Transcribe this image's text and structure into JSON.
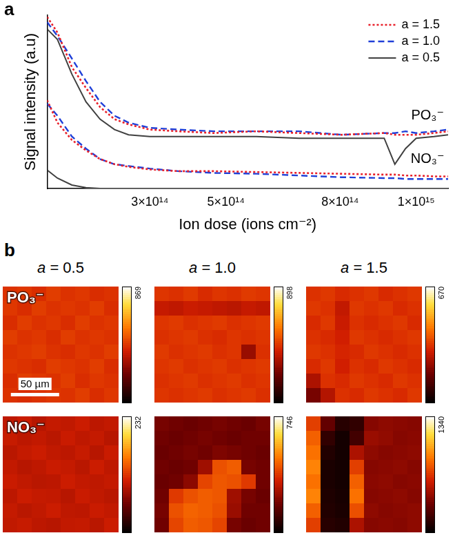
{
  "chart_data": [
    {
      "type": "line",
      "panel": "a",
      "x_label": "Ion dose (ions cm⁻²)",
      "y_label": "Signal intensity (a.u)",
      "x": [
        30000000000000.0,
        57000000000000.0,
        95000000000000.0,
        132000000000000.0,
        169000000000000.0,
        207000000000000.0,
        244000000000000.0,
        300000000000000.0,
        375000000000000.0,
        468000000000000.0,
        580000000000000.0,
        692000000000000.0,
        804000000000000.0,
        916000000000000.0,
        944000000000000.0,
        972000000000000.0,
        1000000000000000.0,
        1047000000000000.0,
        1084000000000000.0
      ],
      "series": [
        {
          "name": "a = 1.5",
          "color": "#e8202a",
          "line_style": "dotted",
          "values": [
            99,
            90,
            70,
            58,
            47,
            40,
            37,
            34,
            33,
            32,
            33,
            32,
            31,
            32,
            31,
            31,
            31,
            32,
            33
          ]
        },
        {
          "name": "a = 1.0",
          "color": "#1f3fd8",
          "line_style": "dashed",
          "values": [
            96,
            88,
            75,
            62,
            50,
            42,
            38,
            35,
            34,
            33,
            33,
            33,
            31,
            32,
            32,
            33,
            32,
            33,
            34
          ]
        },
        {
          "name": "a = 0.5",
          "color": "#404040",
          "line_style": "solid",
          "values": [
            92,
            86,
            66,
            50,
            40,
            34,
            31,
            30,
            30,
            30,
            30,
            29,
            29,
            29,
            14,
            23,
            29,
            30,
            31
          ]
        },
        {
          "name": "a = 1.5",
          "color": "#e8202a",
          "line_style": "dotted",
          "values": [
            51,
            38,
            28,
            22,
            17,
            14,
            12.5,
            11,
            10,
            10,
            9.5,
            9,
            8.5,
            8,
            8,
            7.5,
            7.5,
            7,
            7
          ]
        },
        {
          "name": "a = 1.0",
          "color": "#1f3fd8",
          "line_style": "dashed",
          "values": [
            49,
            42,
            30,
            23,
            17,
            14,
            13,
            11.5,
            10,
            9,
            8.5,
            7.5,
            6.5,
            6,
            6,
            5.5,
            5.5,
            5.5,
            5.5
          ]
        },
        {
          "name": "a = 0.5",
          "color": "#404040",
          "line_style": "solid",
          "values": [
            10.6,
            6,
            2,
            0.5,
            0,
            0,
            0,
            0,
            0,
            0,
            0,
            0,
            0,
            0,
            0,
            0,
            0,
            0,
            0
          ]
        }
      ],
      "annotations": [
        {
          "text": "PO₃⁻",
          "x": 1030000000000000.0,
          "y": 42
        },
        {
          "text": "NO₃⁻",
          "x": 1030000000000000.0,
          "y": 17
        }
      ],
      "xlim": [
        30000000000000.0,
        1084000000000000.0
      ],
      "xticks": [
        {
          "value": 300000000000000.0,
          "label": "3×10¹⁴"
        },
        {
          "value": 500000000000000.0,
          "label": "5×10¹⁴"
        },
        {
          "value": 800000000000000.0,
          "label": "8×10¹⁴"
        },
        {
          "value": 1000000000000000.0,
          "label": "1×10¹⁵"
        }
      ],
      "ylim": [
        0,
        100
      ],
      "yticks": [],
      "tick_labels": "x",
      "grid": false,
      "legend": "upper right"
    },
    {
      "type": "heatmap",
      "panel": "b",
      "columns": [
        "a = 0.5",
        "a = 1.0",
        "a = 1.5"
      ],
      "rows": [
        "PO₃⁻",
        "NO₃⁻"
      ],
      "extent": [
        0,
        120
      ],
      "scale_bar": {
        "label": "50 µm",
        "value": 50
      },
      "maps": [
        [
          {
            "colorbar": {
              "range": [
                0,
                869
              ],
              "ticks": [
                869
              ]
            },
            "cells": [
              [
                430,
                440,
                420,
                450,
                430,
                440,
                420,
                430
              ],
              [
                440,
                420,
                450,
                430,
                440,
                430,
                450,
                420
              ],
              [
                420,
                450,
                430,
                440,
                420,
                450,
                430,
                440
              ],
              [
                450,
                430,
                440,
                420,
                450,
                430,
                440,
                430
              ],
              [
                430,
                440,
                450,
                430,
                420,
                440,
                430,
                450
              ],
              [
                440,
                430,
                420,
                450,
                440,
                430,
                450,
                420
              ],
              [
                420,
                450,
                440,
                430,
                450,
                420,
                440,
                430
              ],
              [
                430,
                420,
                430,
                440,
                430,
                450,
                420,
                440
              ]
            ]
          },
          {
            "colorbar": {
              "range": [
                0,
                898
              ],
              "ticks": [
                898
              ]
            },
            "cells": [
              [
                450,
                440,
                460,
                430,
                450,
                440,
                460,
                450
              ],
              [
                380,
                370,
                390,
                380,
                370,
                360,
                380,
                370
              ],
              [
                450,
                460,
                440,
                450,
                460,
                440,
                450,
                460
              ],
              [
                440,
                450,
                460,
                440,
                430,
                450,
                440,
                450
              ],
              [
                460,
                440,
                450,
                460,
                440,
                450,
                300,
                440
              ],
              [
                450,
                460,
                440,
                450,
                460,
                440,
                450,
                460
              ],
              [
                440,
                450,
                460,
                440,
                450,
                460,
                440,
                450
              ],
              [
                450,
                440,
                450,
                460,
                440,
                450,
                460,
                440
              ]
            ]
          },
          {
            "colorbar": {
              "range": [
                0,
                670
              ],
              "ticks": [
                670
              ]
            },
            "cells": [
              [
                330,
                340,
                320,
                330,
                340,
                320,
                330,
                340
              ],
              [
                340,
                330,
                280,
                340,
                330,
                340,
                320,
                330
              ],
              [
                320,
                340,
                290,
                330,
                320,
                330,
                340,
                320
              ],
              [
                330,
                320,
                300,
                340,
                330,
                320,
                330,
                340
              ],
              [
                340,
                330,
                310,
                320,
                340,
                330,
                320,
                330
              ],
              [
                320,
                340,
                300,
                330,
                320,
                340,
                330,
                320
              ],
              [
                250,
                330,
                320,
                340,
                330,
                320,
                340,
                330
              ],
              [
                180,
                260,
                330,
                320,
                340,
                330,
                320,
                340
              ]
            ]
          }
        ],
        [
          {
            "colorbar": {
              "range": [
                0,
                232
              ],
              "ticks": [
                232
              ]
            },
            "cells": [
              [
                95,
                100,
                92,
                98,
                96,
                101,
                94,
                97
              ],
              [
                99,
                94,
                97,
                93,
                100,
                95,
                98,
                92
              ],
              [
                93,
                98,
                101,
                96,
                94,
                99,
                92,
                100
              ],
              [
                97,
                92,
                95,
                100,
                98,
                93,
                101,
                95
              ],
              [
                100,
                96,
                93,
                94,
                101,
                97,
                95,
                98
              ],
              [
                94,
                101,
                98,
                97,
                92,
                100,
                96,
                93
              ],
              [
                98,
                93,
                96,
                101,
                95,
                94,
                100,
                97
              ],
              [
                96,
                99,
                94,
                92,
                97,
                98,
                93,
                101
              ]
            ]
          },
          {
            "colorbar": {
              "range": [
                0,
                746
              ],
              "ticks": [
                746
              ]
            },
            "cells": [
              [
                200,
                190,
                180,
                190,
                200,
                190,
                180,
                200
              ],
              [
                190,
                180,
                190,
                200,
                190,
                180,
                190,
                190
              ],
              [
                180,
                190,
                200,
                190,
                210,
                200,
                190,
                180
              ],
              [
                190,
                180,
                190,
                260,
                420,
                440,
                200,
                190
              ],
              [
                180,
                190,
                230,
                400,
                430,
                420,
                380,
                190
              ],
              [
                190,
                380,
                420,
                440,
                430,
                260,
                200,
                180
              ],
              [
                200,
                420,
                450,
                440,
                420,
                250,
                190,
                190
              ],
              [
                190,
                400,
                440,
                430,
                400,
                200,
                180,
                190
              ]
            ]
          },
          {
            "colorbar": {
              "range": [
                0,
                1340
              ],
              "ticks": [
                1340
              ]
            },
            "cells": [
              [
                700,
                300,
                120,
                150,
                400,
                420,
                410,
                400
              ],
              [
                800,
                150,
                60,
                200,
                450,
                430,
                400,
                410
              ],
              [
                850,
                100,
                60,
                500,
                420,
                400,
                410,
                420
              ],
              [
                900,
                80,
                60,
                700,
                400,
                410,
                420,
                400
              ],
              [
                850,
                80,
                60,
                800,
                410,
                420,
                400,
                410
              ],
              [
                900,
                90,
                70,
                850,
                400,
                410,
                420,
                400
              ],
              [
                800,
                100,
                80,
                750,
                420,
                400,
                410,
                420
              ],
              [
                700,
                120,
                100,
                500,
                400,
                410,
                400,
                420
              ]
            ]
          }
        ]
      ]
    }
  ]
}
